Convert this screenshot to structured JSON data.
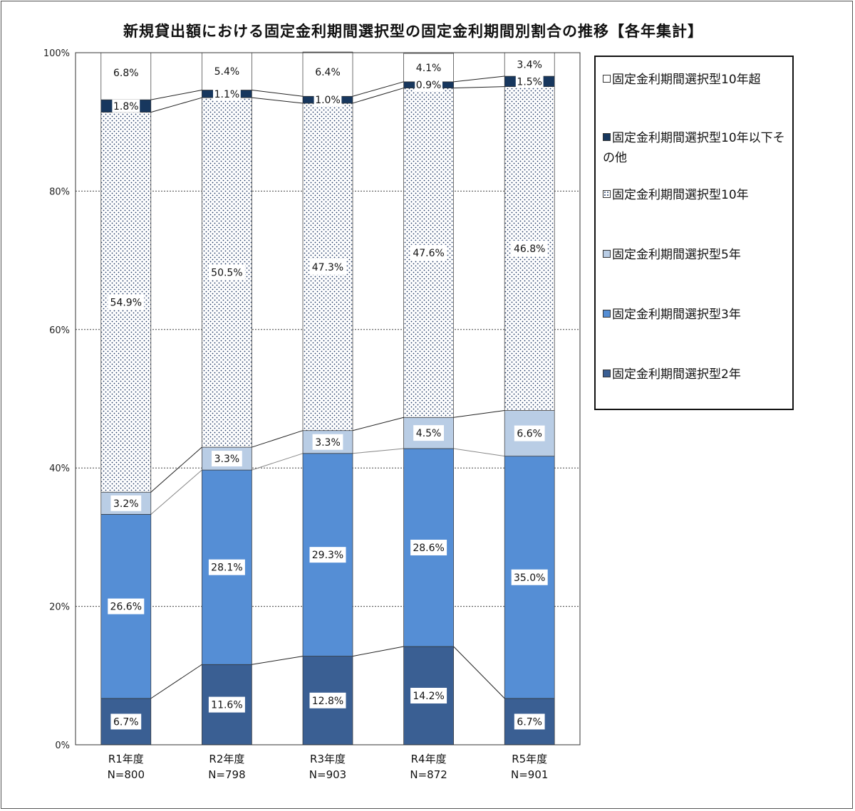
{
  "chart_data": {
    "type": "bar",
    "stacked": true,
    "percent": true,
    "title": "新規貸出額における固定金利期間選択型の固定金利期間別割合の推移【各年集計】",
    "categories": [
      "R1年度",
      "R2年度",
      "R3年度",
      "R4年度",
      "R5年度"
    ],
    "category_sublabels": [
      "N=800",
      "N=798",
      "N=903",
      "N=872",
      "N=901"
    ],
    "ylim": [
      0,
      100
    ],
    "yticks": [
      "0%",
      "20%",
      "40%",
      "60%",
      "80%",
      "100%"
    ],
    "grid": true,
    "legend_position": "right",
    "series": [
      {
        "name": "固定金利期間選択型2年",
        "values": [
          6.7,
          11.6,
          12.8,
          14.2,
          6.7
        ],
        "labels": [
          "6.7%",
          "11.6%",
          "12.8%",
          "14.2%",
          "6.7%"
        ],
        "color": "#3A5F93",
        "pattern": "solid"
      },
      {
        "name": "固定金利期間選択型3年",
        "values": [
          26.6,
          28.1,
          29.3,
          28.6,
          35.0
        ],
        "labels": [
          "26.6%",
          "28.1%",
          "29.3%",
          "28.6%",
          "35.0%"
        ],
        "color": "#558ED5",
        "pattern": "solid"
      },
      {
        "name": "固定金利期間選択型5年",
        "values": [
          3.2,
          3.3,
          3.3,
          4.5,
          6.6
        ],
        "labels": [
          "3.2%",
          "3.3%",
          "3.3%",
          "4.5%",
          "6.6%"
        ],
        "color": "#B9CDE5",
        "pattern": "solid"
      },
      {
        "name": "固定金利期間選択型10年",
        "values": [
          54.9,
          50.5,
          47.3,
          47.6,
          46.8
        ],
        "labels": [
          "54.9%",
          "50.5%",
          "47.3%",
          "47.6%",
          "46.8%"
        ],
        "color": "#1F3864",
        "pattern": "dots"
      },
      {
        "name": "固定金利期間選択型10年以下その他",
        "values": [
          1.8,
          1.1,
          1.0,
          0.9,
          1.5
        ],
        "labels": [
          "1.8%",
          "1.1%",
          "1.0%",
          "0.9%",
          "1.5%"
        ],
        "color": "#17375E",
        "pattern": "solid"
      },
      {
        "name": "固定金利期間選択型10年超",
        "values": [
          6.8,
          5.4,
          6.4,
          4.1,
          3.4
        ],
        "labels": [
          "6.8%",
          "5.4%",
          "6.4%",
          "4.1%",
          "3.4%"
        ],
        "color": "#FFFFFF",
        "pattern": "solid"
      }
    ],
    "legend_order": [
      {
        "label": "固定金利期間選択型10年超",
        "series": 5
      },
      {
        "label": "固定金利期間選択型10年以下その他",
        "series": 4
      },
      {
        "label": "固定金利期間選択型10年",
        "series": 3
      },
      {
        "label": "固定金利期間選択型5年",
        "series": 2
      },
      {
        "label": "固定金利期間選択型3年",
        "series": 1
      },
      {
        "label": "固定金利期間選択型2年",
        "series": 0
      }
    ]
  }
}
